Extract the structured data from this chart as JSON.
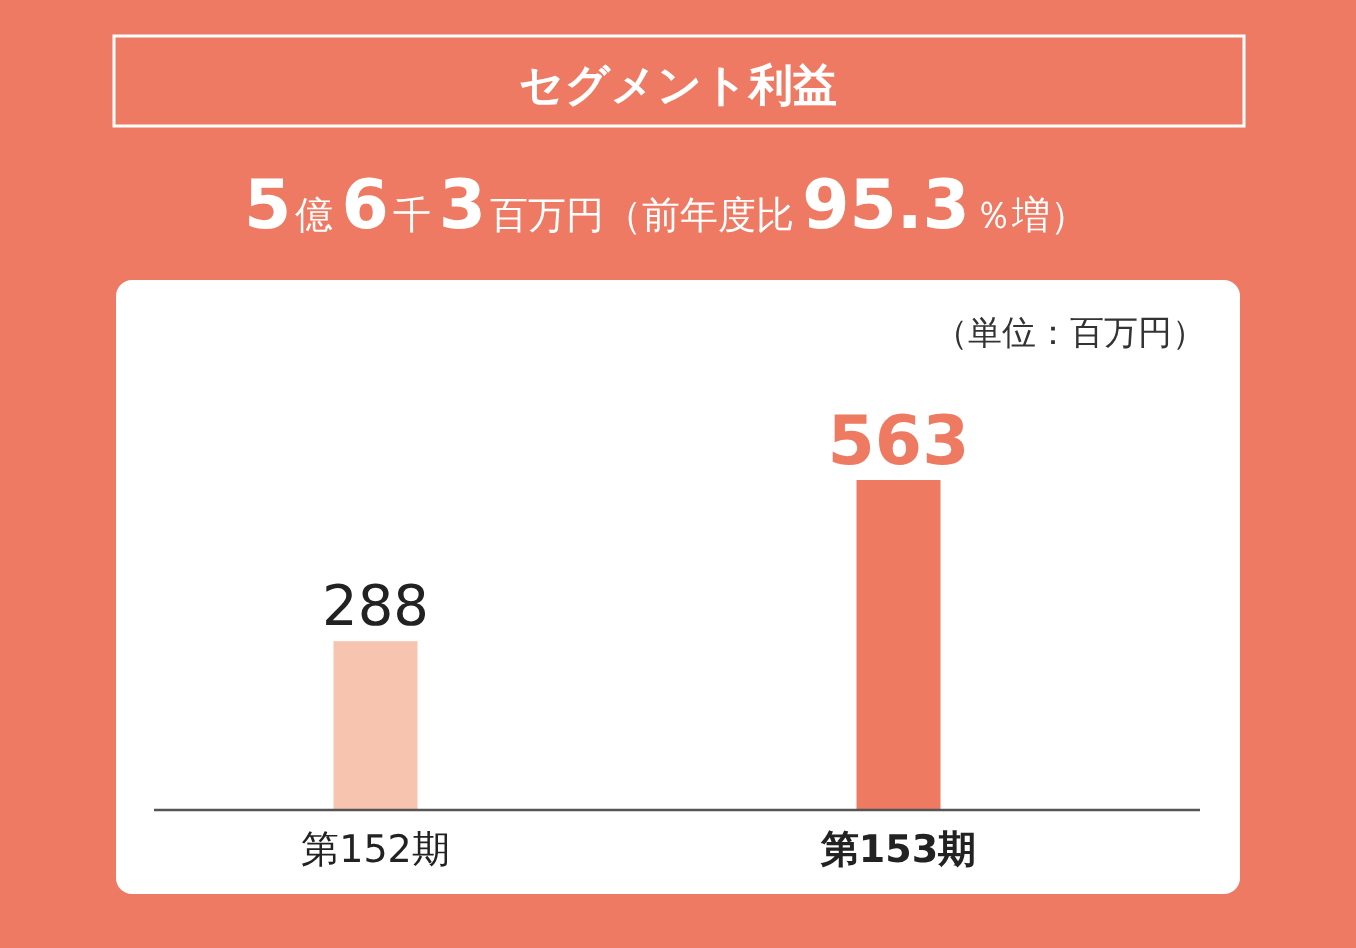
{
  "chart_data": {
    "type": "bar",
    "title": "セグメント利益",
    "subtitle": "5億6千3百万円（前年度比95.3％増）",
    "annotations": [
      "（単位：百万円）"
    ],
    "categories": [
      "第152期",
      "第153期"
    ],
    "values": [
      288,
      563
    ],
    "colors": [
      "#f7c4b0",
      "#ef7a62"
    ],
    "data_labels": true
  }
}
